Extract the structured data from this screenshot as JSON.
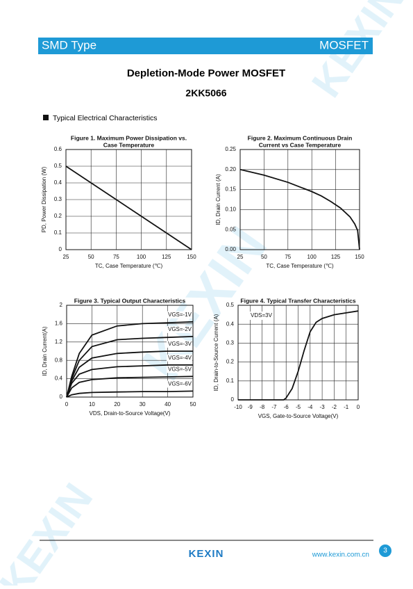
{
  "header": {
    "left": "SMD Type",
    "right": "MOSFET"
  },
  "title": "Depletion-Mode Power MOSFET",
  "part": "2KK5066",
  "section": "Typical Electrical Characteristics",
  "watermark": "KEXIN",
  "chart_data": [
    {
      "type": "line",
      "title": [
        "Figure 1. Maximum Power Dissipation vs.",
        "Case Temperature"
      ],
      "xlabel": "TC, Case Temperature (℃)",
      "ylabel": "PD, Power Dissipation (W)",
      "xlim": [
        25,
        150
      ],
      "ylim": [
        0,
        0.6
      ],
      "xticks": [
        25,
        50,
        75,
        100,
        125,
        150
      ],
      "yticks": [
        0,
        0.1,
        0.2,
        0.3,
        0.4,
        0.5,
        0.6
      ],
      "grid": true,
      "color": "#111111",
      "x": [
        25,
        150
      ],
      "series": [
        {
          "values": [
            0.5,
            0
          ]
        }
      ]
    },
    {
      "type": "line",
      "title": [
        "Figure 2. Maximum Continuous Drain",
        "Current vs Case Temperature"
      ],
      "xlabel": "TC, Case Temperature (℃)",
      "ylabel": "ID, Drain Current (A)",
      "xlim": [
        25,
        150
      ],
      "ylim": [
        0,
        0.25
      ],
      "xticks": [
        25,
        50,
        75,
        100,
        125,
        150
      ],
      "yticks": [
        {
          "value": 0,
          "label": "0.00"
        },
        {
          "value": 0.05,
          "label": "0.05"
        },
        {
          "value": 0.1,
          "label": "0.10"
        },
        {
          "value": 0.15,
          "label": "0.15"
        },
        {
          "value": 0.2,
          "label": "0.20"
        },
        {
          "value": 0.25,
          "label": "0.25"
        }
      ],
      "grid": true,
      "color": "#111111",
      "x": [
        25,
        50,
        75,
        100,
        110,
        120,
        130,
        140,
        145,
        148,
        150
      ],
      "series": [
        {
          "values": [
            0.2,
            0.186,
            0.168,
            0.145,
            0.134,
            0.12,
            0.104,
            0.082,
            0.064,
            0.048,
            0
          ]
        }
      ]
    },
    {
      "type": "line",
      "title": [
        "Figure 3. Typical Output Characteristics"
      ],
      "xlabel": "VDS, Drain-to-Source Voltage(V)",
      "ylabel": "ID, Drain Current(A)",
      "xlim": [
        0,
        50
      ],
      "ylim": [
        0,
        2
      ],
      "xticks": [
        0,
        10,
        20,
        30,
        40,
        50
      ],
      "yticks": [
        0,
        0.4,
        0.8,
        1.2,
        1.6,
        2
      ],
      "grid": true,
      "color": "#111111",
      "x": [
        0,
        2,
        5,
        10,
        20,
        30,
        40,
        50
      ],
      "series": [
        {
          "name": "VGS=-1V",
          "values": [
            0,
            0.45,
            0.95,
            1.35,
            1.55,
            1.6,
            1.62,
            1.64
          ]
        },
        {
          "name": "VGS=-2V",
          "values": [
            0,
            0.4,
            0.8,
            1.1,
            1.25,
            1.28,
            1.3,
            1.32
          ]
        },
        {
          "name": "VGS=-3V",
          "values": [
            0,
            0.35,
            0.65,
            0.85,
            0.95,
            0.98,
            1,
            1
          ]
        },
        {
          "name": "VGS=-4V",
          "values": [
            0,
            0.3,
            0.5,
            0.6,
            0.66,
            0.68,
            0.7,
            0.7
          ]
        },
        {
          "name": "VGS=-5V",
          "values": [
            0,
            0.2,
            0.32,
            0.38,
            0.42,
            0.43,
            0.44,
            0.45
          ]
        },
        {
          "name": "VGS=-6V",
          "values": [
            0,
            0.05,
            0.08,
            0.1,
            0.11,
            0.12,
            0.12,
            0.13
          ]
        }
      ]
    },
    {
      "type": "line",
      "title": [
        "Figure 4. Typical Transfer Characteristics"
      ],
      "xlabel": "VGS, Gate-to-Source Voltage(V)",
      "ylabel": "ID, Drain-to-Source Current (A)",
      "annotation": "VDS=3V",
      "xlim": [
        -10,
        0
      ],
      "ylim": [
        0,
        0.5
      ],
      "xticks": [
        -10,
        -9,
        -8,
        -7,
        -6,
        -5,
        -4,
        -3,
        -2,
        -1,
        0
      ],
      "yticks": [
        0,
        0.1,
        0.2,
        0.3,
        0.4,
        0.5
      ],
      "grid": true,
      "color": "#111111",
      "x": [
        -10,
        -7,
        -6.2,
        -6,
        -5.5,
        -5,
        -4.5,
        -4,
        -3.5,
        -3,
        -2,
        -1,
        0
      ],
      "series": [
        {
          "values": [
            0,
            0,
            0,
            0.01,
            0.06,
            0.15,
            0.26,
            0.36,
            0.41,
            0.43,
            0.45,
            0.46,
            0.47
          ]
        }
      ]
    }
  ],
  "footer": {
    "logo": "KEXIN",
    "url": "www.kexin.com.cn",
    "page": "3"
  }
}
